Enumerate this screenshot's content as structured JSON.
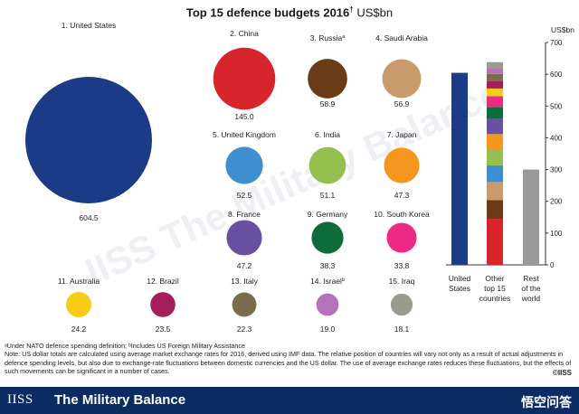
{
  "header": {
    "title": "Top 15 defence budgets 2016",
    "title_marker": "†",
    "unit": "US$bn"
  },
  "chart_data": [
    {
      "type": "bubble",
      "title": "Top 15 defence budgets 2016",
      "unit": "US$bn",
      "bubbles": [
        {
          "rank_label": "1. United States",
          "country": "United States",
          "value": 604.5,
          "display": "604.5",
          "color": "#1b3b87"
        },
        {
          "rank_label": "2. China",
          "country": "China",
          "value": 145.0,
          "display": "145.0",
          "color": "#d8242b"
        },
        {
          "rank_label": "3. Russia",
          "marker": "a",
          "country": "Russia",
          "value": 58.9,
          "display": "58.9",
          "color": "#6b3a16"
        },
        {
          "rank_label": "4. Saudi Arabia",
          "country": "Saudi Arabia",
          "value": 56.9,
          "display": "56.9",
          "color": "#c99a6c"
        },
        {
          "rank_label": "5. United Kingdom",
          "country": "United Kingdom",
          "value": 52.5,
          "display": "52.5",
          "color": "#3d8fd0"
        },
        {
          "rank_label": "6. India",
          "country": "India",
          "value": 51.1,
          "display": "51.1",
          "color": "#95c04e"
        },
        {
          "rank_label": "7. Japan",
          "country": "Japan",
          "value": 47.3,
          "display": "47.3",
          "color": "#f7961e"
        },
        {
          "rank_label": "8. France",
          "country": "France",
          "value": 47.2,
          "display": "47.2",
          "color": "#6950a1"
        },
        {
          "rank_label": "9. Germany",
          "country": "Germany",
          "value": 38.3,
          "display": "38.3",
          "color": "#0e6c3a"
        },
        {
          "rank_label": "10. South Korea",
          "country": "South Korea",
          "value": 33.8,
          "display": "33.8",
          "color": "#ec2a86"
        },
        {
          "rank_label": "11. Australia",
          "country": "Australia",
          "value": 24.2,
          "display": "24.2",
          "color": "#f8cc17"
        },
        {
          "rank_label": "12. Brazil",
          "country": "Brazil",
          "value": 23.5,
          "display": "23.5",
          "color": "#a61d5c"
        },
        {
          "rank_label": "13. Italy",
          "country": "Italy",
          "value": 22.3,
          "display": "22.3",
          "color": "#7d6b4e"
        },
        {
          "rank_label": "14. Israel",
          "marker": "b",
          "country": "Israel",
          "value": 19.0,
          "display": "19.0",
          "color": "#b672b8"
        },
        {
          "rank_label": "15. Iraq",
          "country": "Iraq",
          "value": 18.1,
          "display": "18.1",
          "color": "#9a9a8e"
        }
      ]
    },
    {
      "type": "bar",
      "stacked": true,
      "ylabel": "US$bn",
      "ylim": [
        0,
        700
      ],
      "yticks": [
        0,
        100,
        200,
        300,
        400,
        500,
        600,
        700
      ],
      "categories": [
        "United States",
        "Other top 15 countries",
        "Rest of the world"
      ],
      "category_labels": [
        [
          "United",
          "States"
        ],
        [
          "Other",
          "top 15",
          "countries"
        ],
        [
          "Rest",
          "of the",
          "world"
        ]
      ],
      "us_value": 604.5,
      "us_color": "#1b3b87",
      "rest_of_world_value": 300,
      "rest_of_world_color": "#9a9a9a",
      "other_stack_order": [
        "China",
        "Russia",
        "Saudi Arabia",
        "United Kingdom",
        "India",
        "Japan",
        "France",
        "Germany",
        "South Korea",
        "Australia",
        "Brazil",
        "Italy",
        "Israel",
        "Iraq"
      ]
    }
  ],
  "notes": {
    "line1": "ᵃUnder NATO defence spending definition; ᵇIncludes US Foreign Military Assistance",
    "line2": "Note: US dollar totals are calculated using average market exchange rates for 2016, derived using IMF data. The relative position of countries will vary not only as a result of actual adjustments in defence spending levels, but also due to exchange-rate fluctuations between domestic currencies and the US dollar. The use of average exchange rates reduces these fluctuations, but the effects of such movements can be significant in a number of cases.",
    "copyright": "©IISS"
  },
  "footer": {
    "logo": "IISS",
    "publication": "The Military Balance",
    "brand": "悟空问答"
  },
  "watermark": "IISS The Military Balance"
}
